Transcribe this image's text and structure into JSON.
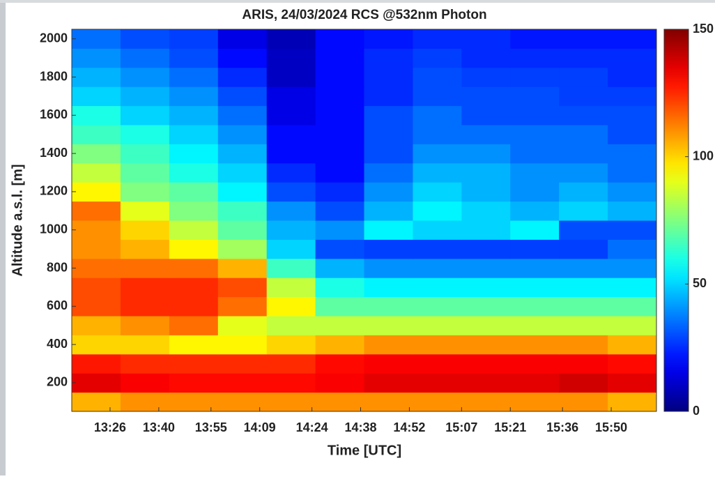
{
  "chart_data": {
    "type": "heatmap",
    "title": "ARIS, 24/03/2024 RCS @532nm Photon",
    "xlabel": "Time [UTC]",
    "ylabel": "Altitude a.s.l. [m]",
    "xlim": [
      795,
      963
    ],
    "xticks": [
      {
        "value": 806,
        "label": "13:26"
      },
      {
        "value": 820,
        "label": "13:40"
      },
      {
        "value": 835,
        "label": "13:55"
      },
      {
        "value": 849,
        "label": "14:09"
      },
      {
        "value": 864,
        "label": "14:24"
      },
      {
        "value": 878,
        "label": "14:38"
      },
      {
        "value": 892,
        "label": "14:52"
      },
      {
        "value": 907,
        "label": "15:07"
      },
      {
        "value": 921,
        "label": "15:21"
      },
      {
        "value": 936,
        "label": "15:36"
      },
      {
        "value": 950,
        "label": "15:50"
      }
    ],
    "ylim": [
      50,
      2050
    ],
    "yticks": [
      200,
      400,
      600,
      800,
      1000,
      1200,
      1400,
      1600,
      1800,
      2000
    ],
    "x_bins": [
      795,
      809,
      823,
      837,
      851,
      865,
      879,
      893,
      907,
      921,
      935,
      949,
      963
    ],
    "y_bins": [
      50,
      150,
      250,
      350,
      450,
      550,
      650,
      750,
      850,
      950,
      1050,
      1150,
      1250,
      1350,
      1450,
      1550,
      1650,
      1750,
      1850,
      1950,
      2050
    ],
    "z": [
      [
        105,
        110,
        110,
        110,
        110,
        110,
        110,
        110,
        110,
        110,
        110,
        105
      ],
      [
        135,
        132,
        130,
        130,
        130,
        132,
        135,
        135,
        135,
        135,
        138,
        135
      ],
      [
        128,
        125,
        125,
        125,
        125,
        130,
        132,
        132,
        132,
        132,
        132,
        130
      ],
      [
        100,
        100,
        95,
        95,
        100,
        105,
        110,
        110,
        110,
        110,
        110,
        105
      ],
      [
        105,
        110,
        115,
        90,
        85,
        85,
        85,
        85,
        85,
        85,
        85,
        85
      ],
      [
        120,
        125,
        125,
        115,
        95,
        70,
        70,
        70,
        70,
        70,
        70,
        70
      ],
      [
        120,
        125,
        125,
        120,
        85,
        60,
        55,
        55,
        55,
        55,
        55,
        55
      ],
      [
        115,
        115,
        115,
        105,
        65,
        45,
        40,
        40,
        40,
        40,
        40,
        40
      ],
      [
        110,
        105,
        95,
        80,
        50,
        30,
        28,
        28,
        28,
        28,
        28,
        35
      ],
      [
        110,
        100,
        85,
        70,
        45,
        40,
        55,
        50,
        50,
        55,
        30,
        30
      ],
      [
        115,
        90,
        75,
        65,
        40,
        30,
        45,
        55,
        50,
        45,
        50,
        45
      ],
      [
        95,
        75,
        70,
        55,
        30,
        25,
        40,
        50,
        45,
        40,
        45,
        40
      ],
      [
        85,
        70,
        60,
        50,
        25,
        20,
        35,
        45,
        45,
        40,
        40,
        35
      ],
      [
        75,
        65,
        55,
        45,
        20,
        20,
        30,
        40,
        40,
        35,
        35,
        35
      ],
      [
        65,
        60,
        50,
        40,
        20,
        20,
        30,
        35,
        35,
        35,
        35,
        30
      ],
      [
        60,
        50,
        45,
        35,
        15,
        20,
        30,
        35,
        30,
        30,
        30,
        30
      ],
      [
        50,
        45,
        40,
        30,
        15,
        20,
        25,
        30,
        30,
        30,
        28,
        28
      ],
      [
        45,
        40,
        35,
        25,
        10,
        20,
        25,
        30,
        28,
        28,
        28,
        25
      ],
      [
        40,
        35,
        30,
        20,
        10,
        20,
        25,
        28,
        25,
        25,
        25,
        25
      ],
      [
        35,
        30,
        28,
        15,
        8,
        20,
        22,
        25,
        25,
        22,
        22,
        22
      ]
    ],
    "colormap": "jet",
    "clim": [
      0,
      150
    ],
    "cticks": [
      0,
      50,
      100,
      150
    ]
  }
}
